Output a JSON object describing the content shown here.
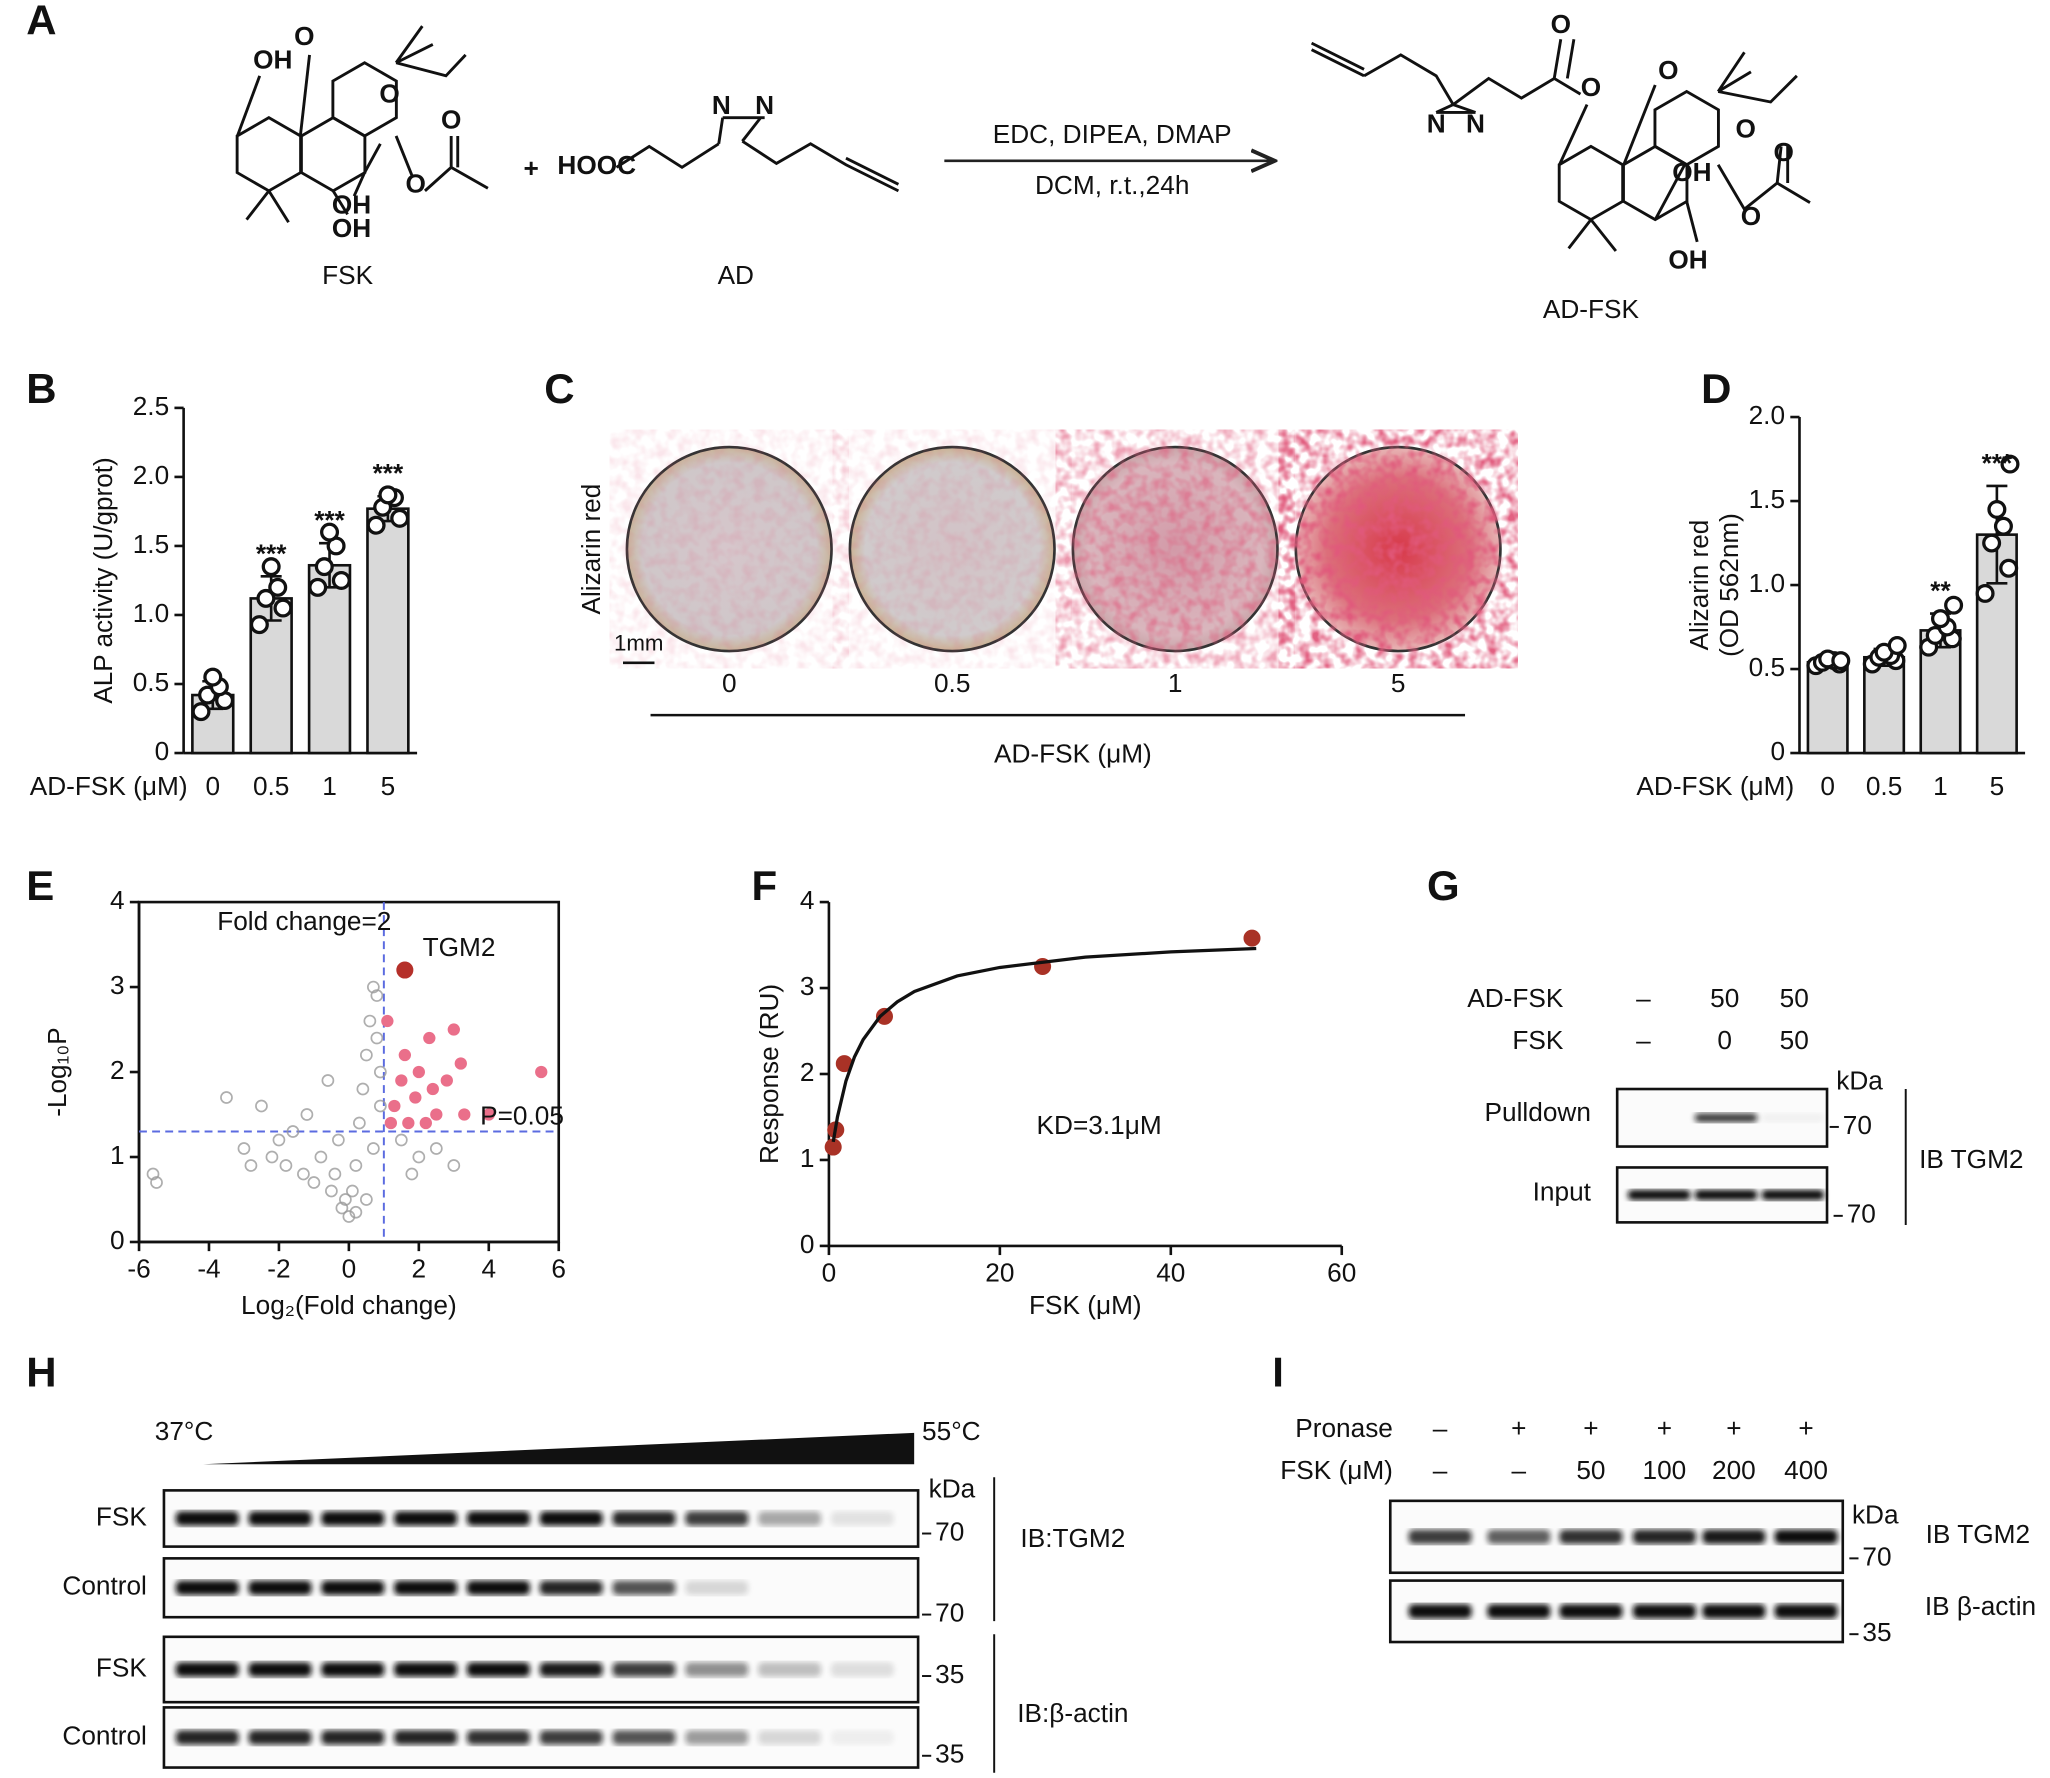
{
  "panel_labels": [
    "A",
    "B",
    "C",
    "D",
    "E",
    "F",
    "G",
    "H",
    "I"
  ],
  "scheme": {
    "fsk": {
      "name": "FSK",
      "atoms": [
        "OH",
        "O",
        "O",
        "O",
        "OH",
        "O",
        "OH"
      ]
    },
    "plus": "+",
    "ad": {
      "name": "AD",
      "atoms": [
        "HOOC",
        "N",
        "N"
      ]
    },
    "reagents": "EDC, DIPEA, DMAP",
    "conditions": "DCM, r.t.,24h",
    "product": {
      "name": "AD-FSK",
      "atoms": [
        "O",
        "N",
        "N",
        "O",
        "O",
        "O",
        "OH",
        "O",
        "O",
        "OH"
      ]
    }
  },
  "chart_data": [
    {
      "type": "bar",
      "ylabel": "ALP activity (U/gprot)",
      "xlabel": "AD-FSK (μM)",
      "categories": [
        "0",
        "0.5",
        "1",
        "5"
      ],
      "values": [
        0.42,
        1.12,
        1.36,
        1.77
      ],
      "errors": [
        0.1,
        0.16,
        0.16,
        0.09
      ],
      "points": [
        [
          0.3,
          0.38,
          0.42,
          0.48,
          0.55
        ],
        [
          0.93,
          1.05,
          1.12,
          1.2,
          1.35
        ],
        [
          1.2,
          1.25,
          1.35,
          1.5,
          1.6
        ],
        [
          1.65,
          1.7,
          1.78,
          1.85,
          1.87
        ]
      ],
      "significance": [
        null,
        "***",
        "***",
        "***"
      ],
      "color": "#d9d9d9",
      "ylim": [
        0,
        2.5
      ],
      "yticks": [
        0,
        0.5,
        {
          "value": 1,
          "label": "1.0"
        },
        1.5,
        {
          "value": 2,
          "label": "2.0"
        },
        2.5
      ]
    },
    {
      "type": "bar",
      "ylabel": [
        "Alizarin red",
        "(OD 562nm)"
      ],
      "xlabel": "AD-FSK (μM)",
      "categories": [
        "0",
        "0.5",
        "1",
        "5"
      ],
      "values": [
        0.54,
        0.57,
        0.73,
        1.3
      ],
      "errors": [
        0.03,
        0.05,
        0.1,
        0.29
      ],
      "points": [
        [
          0.52,
          0.53,
          0.54,
          0.55,
          0.56,
          0.55
        ],
        [
          0.53,
          0.55,
          0.57,
          0.58,
          0.6,
          0.64
        ],
        [
          0.63,
          0.68,
          0.7,
          0.75,
          0.8,
          0.88
        ],
        [
          0.95,
          1.1,
          1.25,
          1.35,
          1.45,
          1.72
        ]
      ],
      "significance": [
        null,
        null,
        "**",
        "***"
      ],
      "color": "#d9d9d9",
      "ylim": [
        0,
        2
      ],
      "yticks": [
        0,
        0.5,
        {
          "value": 1,
          "label": "1.0"
        },
        1.5,
        {
          "value": 2,
          "label": "2.0"
        }
      ]
    },
    {
      "type": "scatter",
      "ylabel": "-Log₁₀P",
      "xlabel": "Log₂(Fold change)",
      "box": true,
      "annotations": [
        "Fold change=2",
        "TGM2",
        "P=0.05"
      ],
      "threshold_x": 1,
      "threshold_y": 1.3,
      "threshold_color": "#5b6be0",
      "xlim": [
        -6,
        6
      ],
      "xticks": [
        -6,
        -4,
        -2,
        0,
        2,
        4,
        6
      ],
      "ylim": [
        0,
        4
      ],
      "yticks": [
        0,
        1,
        2,
        3,
        4
      ],
      "series": [
        {
          "color": "#9a9a9a",
          "hollow": true,
          "x": [
            -5.6,
            -5.5,
            -3.5,
            -3,
            -2.8,
            -2.5,
            -2.2,
            -2,
            -1.8,
            -1.6,
            -1.3,
            -1.2,
            -1,
            -0.8,
            -0.6,
            -0.5,
            -0.3,
            -0.2,
            0,
            0.1,
            0.2,
            0.3,
            0.4,
            0.5,
            0.6,
            0.7,
            0.8,
            0.9,
            0.5,
            0.7,
            0.9,
            0.8,
            1.5,
            2,
            2.5,
            3,
            1.8,
            -0.4,
            0.2,
            -0.1
          ],
          "values": [
            0.8,
            0.7,
            1.7,
            1.1,
            0.9,
            1.6,
            1.0,
            1.2,
            0.9,
            1.3,
            0.8,
            1.5,
            0.7,
            1.0,
            1.9,
            0.6,
            1.2,
            0.4,
            0.3,
            0.6,
            0.9,
            1.4,
            1.8,
            2.2,
            2.6,
            3.0,
            2.4,
            2.0,
            0.5,
            1.1,
            1.6,
            2.9,
            1.2,
            1.0,
            1.1,
            0.9,
            0.8,
            0.8,
            0.35,
            0.5
          ]
        },
        {
          "color": "#ea6f8a",
          "x": [
            1.2,
            1.3,
            1.5,
            1.6,
            1.7,
            1.9,
            2.0,
            2.2,
            2.3,
            2.5,
            2.8,
            3.0,
            3.3,
            3.2,
            4.0,
            5.5,
            1.1,
            2.4
          ],
          "values": [
            1.4,
            1.6,
            1.9,
            2.2,
            1.4,
            1.7,
            2.0,
            1.4,
            2.4,
            1.5,
            1.9,
            2.5,
            1.5,
            2.1,
            1.5,
            2.0,
            2.6,
            1.8
          ]
        },
        {
          "color": "#b5302a",
          "x": [
            1.6
          ],
          "values": [
            3.2
          ]
        }
      ]
    },
    {
      "type": "scatter",
      "ylabel": "Response (RU)",
      "xlabel": "FSK (μM)",
      "annotations": [
        "KD=3.1μM"
      ],
      "xlim": [
        0,
        60
      ],
      "xticks": [
        0,
        20,
        40,
        60
      ],
      "ylim": [
        0,
        4
      ],
      "yticks": [
        0,
        1,
        2,
        3,
        4
      ],
      "series": [
        {
          "color": "#a93226",
          "x": [
            0.5,
            0.8,
            1.8,
            6.5,
            25,
            49.5
          ],
          "values": [
            1.15,
            1.35,
            2.12,
            2.67,
            3.25,
            3.58
          ]
        },
        {
          "color": "#111111",
          "line": true,
          "x": [
            0.5,
            1,
            2,
            3,
            4,
            6,
            8,
            10,
            15,
            20,
            30,
            40,
            50
          ],
          "values": [
            1.21,
            1.5,
            1.92,
            2.2,
            2.4,
            2.67,
            2.84,
            2.96,
            3.14,
            3.24,
            3.36,
            3.42,
            3.46
          ]
        }
      ]
    }
  ],
  "panel_c": {
    "ylabel": "Alizarin red",
    "scale_bar": "1mm",
    "categories": [
      "0",
      "0.5",
      "1",
      "5"
    ],
    "xlabel": "AD-FSK (μM)"
  },
  "panel_g": {
    "rows": [
      {
        "label": "AD-FSK",
        "values": [
          "–",
          "50",
          "50"
        ]
      },
      {
        "label": "FSK",
        "values": [
          "–",
          "0",
          "50"
        ]
      }
    ],
    "unit": "kDa",
    "blots": [
      {
        "label": "Pulldown",
        "marker": "70"
      },
      {
        "label": "Input",
        "marker": "70"
      }
    ],
    "antibody": "IB TGM2"
  },
  "panel_h": {
    "temp_start": "37°C",
    "temp_end": "55°C",
    "unit": "kDa",
    "blots": [
      {
        "label": "FSK",
        "marker": "70"
      },
      {
        "label": "Control",
        "marker": "70"
      },
      {
        "label": "FSK",
        "marker": "35"
      },
      {
        "label": "Control",
        "marker": "35"
      }
    ],
    "antibodies": [
      "IB:TGM2",
      "IB:β-actin"
    ]
  },
  "panel_i": {
    "rows": [
      {
        "label": "Pronase",
        "values": [
          "–",
          "+",
          "+",
          "+",
          "+",
          "+"
        ]
      },
      {
        "label": "FSK (μM)",
        "values": [
          "–",
          "–",
          "50",
          "100",
          "200",
          "400"
        ]
      }
    ],
    "unit": "kDa",
    "blots": [
      {
        "antibody": "IB TGM2",
        "marker": "70"
      },
      {
        "antibody": "IB β-actin",
        "marker": "35"
      }
    ]
  }
}
